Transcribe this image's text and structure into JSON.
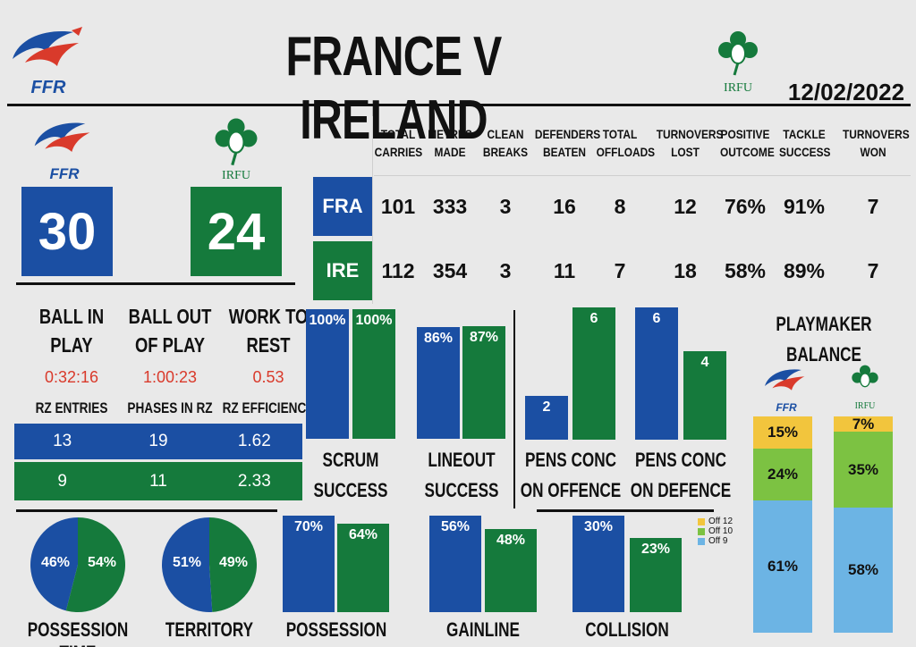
{
  "header": {
    "title": "FRANCE V IRELAND",
    "date": "12/02/2022",
    "ffr_text": "FFR",
    "irfu_text": "IRFU"
  },
  "colors": {
    "france": "#1b4fa3",
    "ireland": "#157a3c",
    "off12": "#f2c53d",
    "off10": "#7cc242",
    "off9": "#6cb4e4",
    "red_value": "#d93a2b"
  },
  "scores": {
    "fra": "30",
    "ire": "24"
  },
  "stats_table": {
    "headers": [
      [
        "TOTAL",
        "CARRIES"
      ],
      [
        "METRES",
        "MADE"
      ],
      [
        "CLEAN",
        "BREAKS"
      ],
      [
        "DEFENDERS",
        "BEATEN"
      ],
      [
        "TOTAL",
        "OFFLOADS"
      ],
      [
        "TURNOVERS",
        "LOST"
      ],
      [
        "POSITIVE",
        "OUTCOME"
      ],
      [
        "TACKLE",
        "SUCCESS"
      ],
      [
        "TURNOVERS",
        "WON"
      ]
    ],
    "rows": [
      {
        "team": "FRA",
        "values": [
          "101",
          "333",
          "3",
          "16",
          "8",
          "12",
          "76%",
          "91%",
          "7"
        ]
      },
      {
        "team": "IRE",
        "values": [
          "112",
          "354",
          "3",
          "11",
          "7",
          "18",
          "58%",
          "89%",
          "7"
        ]
      }
    ]
  },
  "play": {
    "labels": [
      [
        "BALL IN",
        "PLAY"
      ],
      [
        "BALL OUT",
        "OF PLAY"
      ],
      [
        "WORK TO",
        "REST"
      ]
    ],
    "values": [
      "0:32:16",
      "1:00:23",
      "0.53"
    ],
    "rz_headers": [
      "RZ ENTRIES",
      "PHASES IN RZ",
      "RZ EFFICIENCY"
    ],
    "rz_rows": [
      {
        "team": "FRA",
        "values": [
          "13",
          "19",
          "1.62"
        ]
      },
      {
        "team": "IRE",
        "values": [
          "9",
          "11",
          "2.33"
        ]
      }
    ]
  },
  "chart_data": [
    {
      "type": "bar",
      "name": [
        "SCRUM",
        "SUCCESS"
      ],
      "series": [
        {
          "values": [
            100
          ],
          "label": "100%"
        },
        {
          "values": [
            100
          ],
          "label": "100%"
        }
      ],
      "unit": "%"
    },
    {
      "type": "bar",
      "name": [
        "LINEOUT",
        "SUCCESS"
      ],
      "series": [
        {
          "values": [
            86
          ],
          "label": "86%"
        },
        {
          "values": [
            87
          ],
          "label": "87%"
        }
      ],
      "unit": "%"
    },
    {
      "type": "bar",
      "name": [
        "PENS CONC",
        "ON OFFENCE"
      ],
      "series": [
        {
          "values": [
            2
          ],
          "label": "2"
        },
        {
          "values": [
            6
          ],
          "label": "6"
        }
      ]
    },
    {
      "type": "bar",
      "name": [
        "PENS CONC",
        "ON DEFENCE"
      ],
      "series": [
        {
          "values": [
            6
          ],
          "label": "6"
        },
        {
          "values": [
            4
          ],
          "label": "4"
        }
      ]
    },
    {
      "type": "pie",
      "name": "POSSESSION TIME",
      "values": [
        46,
        54
      ],
      "labels": [
        "46%",
        "54%"
      ]
    },
    {
      "type": "pie",
      "name": "TERRITORY",
      "values": [
        51,
        49
      ],
      "labels": [
        "51%",
        "49%"
      ]
    },
    {
      "type": "bar",
      "name": "POSSESSION KICKED",
      "series": [
        {
          "values": [
            70
          ],
          "label": "70%"
        },
        {
          "values": [
            64
          ],
          "label": "64%"
        }
      ],
      "unit": "%"
    },
    {
      "type": "bar",
      "name": "GAINLINE SUCCESS",
      "series": [
        {
          "values": [
            56
          ],
          "label": "56%"
        },
        {
          "values": [
            48
          ],
          "label": "48%"
        }
      ],
      "unit": "%"
    },
    {
      "type": "bar",
      "name": "COLLISION DOMINANCE",
      "series": [
        {
          "values": [
            30
          ],
          "label": "30%"
        },
        {
          "values": [
            23
          ],
          "label": "23%"
        }
      ],
      "unit": "%"
    },
    {
      "type": "bar",
      "stacked": true,
      "name": [
        "PLAYMAKER",
        "BALANCE"
      ],
      "legend": [
        "Off 12",
        "Off 10",
        "Off 9"
      ],
      "series": [
        {
          "values": [
            61,
            24,
            15
          ],
          "labels": [
            "61%",
            "24%",
            "15%"
          ]
        },
        {
          "values": [
            58,
            35,
            7
          ],
          "labels": [
            "58%",
            "35%",
            "7%"
          ]
        }
      ]
    }
  ]
}
